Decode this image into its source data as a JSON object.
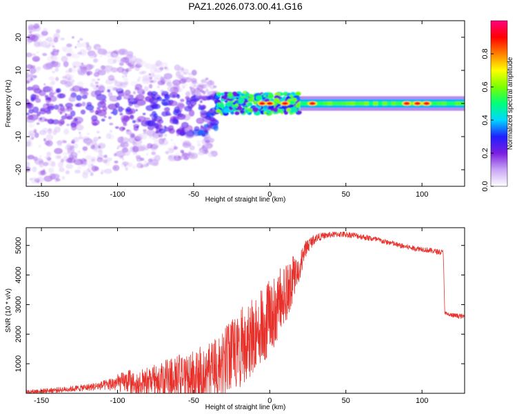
{
  "chart_data": [
    {
      "type": "heatmap",
      "title": "PAZ1.2026.073.00.41.G16",
      "xlabel": "Height of straight line (km)",
      "ylabel": "Frequency (Hz)",
      "xlim": [
        -160,
        128
      ],
      "ylim": [
        -25,
        25
      ],
      "x_ticks": [
        -150,
        -100,
        -50,
        0,
        50,
        100
      ],
      "y_ticks": [
        -20,
        -10,
        0,
        10,
        20
      ],
      "colorbar": {
        "label": "Normalized spectral amplitude",
        "range": [
          0,
          1
        ],
        "ticks": [
          "0.0",
          "0.2",
          "0.4",
          "0.6",
          "0.8"
        ],
        "colormap": "hsv-rainbow",
        "colors": [
          "#ffffff",
          "#c9a6f5",
          "#7a1fe0",
          "#1f1fff",
          "#00d7ff",
          "#00ff7a",
          "#7aff00",
          "#ffff00",
          "#ff8000",
          "#ff0000",
          "#ff0080"
        ]
      },
      "features": [
        {
          "description": "scattered signal",
          "x_range": [
            -160,
            -35
          ],
          "y_range": [
            -25,
            25
          ],
          "typical_amplitude": 0.1
        },
        {
          "description": "narrowing signal band",
          "x_range": [
            -35,
            20
          ],
          "y_range": [
            -3,
            3
          ],
          "typical_amplitude": 0.45
        },
        {
          "description": "steady signal band",
          "x_range": [
            20,
            128
          ],
          "y_center": 0,
          "half_width": 1,
          "typical_amplitude": 0.55
        },
        {
          "description": "peak amplitude patches",
          "x_points": [
            -5,
            0,
            10,
            28,
            90,
            97,
            103
          ],
          "y_center": 0,
          "typical_amplitude": 0.9
        }
      ]
    },
    {
      "type": "line",
      "xlabel": "Height of straight line (km)",
      "ylabel": "SNR (10 * v/v)",
      "xlim": [
        -160,
        128
      ],
      "ylim": [
        0,
        5600
      ],
      "x_ticks": [
        -150,
        -100,
        -50,
        0,
        50,
        100
      ],
      "y_ticks": [
        1000,
        2000,
        3000,
        4000,
        5000
      ],
      "series": [
        {
          "name": "SNR",
          "color": "#e8312b",
          "x": [
            -160,
            -150,
            -140,
            -130,
            -120,
            -110,
            -100,
            -90,
            -80,
            -70,
            -60,
            -50,
            -40,
            -35,
            -30,
            -25,
            -20,
            -15,
            -10,
            -5,
            0,
            5,
            10,
            15,
            20,
            25,
            30,
            35,
            40,
            45,
            50,
            55,
            60,
            65,
            70,
            75,
            80,
            85,
            90,
            95,
            100,
            105,
            110,
            114,
            115,
            118,
            122,
            128
          ],
          "values": [
            50,
            80,
            110,
            150,
            200,
            260,
            350,
            420,
            520,
            620,
            720,
            800,
            900,
            1000,
            1250,
            1550,
            1850,
            2100,
            2350,
            2600,
            2900,
            3250,
            3650,
            4050,
            4500,
            5000,
            5250,
            5320,
            5360,
            5380,
            5370,
            5350,
            5300,
            5250,
            5200,
            5130,
            5080,
            5000,
            4950,
            4900,
            4880,
            4830,
            4790,
            4760,
            2700,
            2650,
            2620,
            2600
          ],
          "noise_amplitude": [
            60,
            80,
            90,
            100,
            120,
            150,
            300,
            420,
            550,
            650,
            800,
            950,
            1100,
            1200,
            1300,
            1400,
            1400,
            1400,
            1400,
            1350,
            1300,
            1250,
            1100,
            900,
            500,
            250,
            150,
            110,
            100,
            100,
            100,
            100,
            100,
            100,
            100,
            90,
            90,
            90,
            90,
            90,
            90,
            90,
            90,
            90,
            80,
            80,
            80,
            80
          ]
        }
      ]
    }
  ]
}
